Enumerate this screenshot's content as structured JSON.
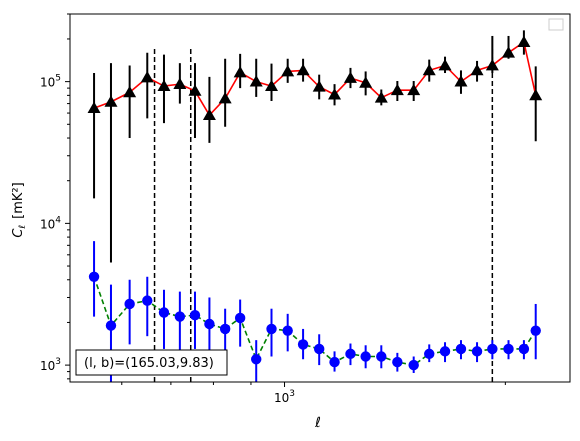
{
  "chart_data": {
    "type": "scatter",
    "xscale": "log",
    "yscale": "log",
    "xlabel": "ℓ",
    "ylabel_main": "C",
    "ylabel_sub": "ℓ",
    "ylabel_unit": "[mK²]",
    "xlim": [
      510,
      2450
    ],
    "ylim": [
      760,
      300000
    ],
    "x_ticks": [
      {
        "value": 1000,
        "base": "10",
        "exp": "3"
      }
    ],
    "y_ticks": [
      {
        "value": 1000,
        "base": "10",
        "exp": "3"
      },
      {
        "value": 10000,
        "base": "10",
        "exp": "4"
      },
      {
        "value": 100000,
        "base": "10",
        "exp": "5"
      }
    ],
    "vlines": [
      665,
      745,
      1920
    ],
    "annotation": "(l, b)=(165.03,9.83)",
    "series": [
      {
        "marker": "triangle",
        "marker_color": "#000000",
        "line_color": "#ff0000",
        "line_style": "solid",
        "error_color": "#000000",
        "x": [
          550,
          580,
          615,
          650,
          685,
          720,
          755,
          790,
          830,
          870,
          915,
          960,
          1010,
          1060,
          1115,
          1170,
          1230,
          1290,
          1355,
          1425,
          1500,
          1575,
          1655,
          1740,
          1830,
          1920,
          2020,
          2120,
          2200
        ],
        "y": [
          65000,
          72000,
          84000,
          107000,
          93000,
          96000,
          86000,
          58000,
          76000,
          116000,
          100000,
          93000,
          118000,
          120000,
          92000,
          81000,
          106000,
          98000,
          77000,
          87000,
          87000,
          120000,
          130000,
          100000,
          120000,
          130000,
          160000,
          190000,
          80000
        ],
        "yerr_low": [
          15000,
          5300,
          40000,
          55000,
          51000,
          70000,
          40000,
          37000,
          48000,
          90000,
          78000,
          73000,
          98000,
          100000,
          75000,
          68000,
          90000,
          80000,
          68000,
          73000,
          73000,
          100000,
          115000,
          82000,
          100000,
          115000,
          145000,
          155000,
          38000
        ],
        "yerr_high": [
          115000,
          135000,
          130000,
          160000,
          155000,
          135000,
          135000,
          108000,
          145000,
          157000,
          145000,
          134000,
          145000,
          145000,
          112000,
          96000,
          125000,
          118000,
          88000,
          101000,
          101000,
          143000,
          150000,
          120000,
          140000,
          210000,
          210000,
          230000,
          128000
        ]
      },
      {
        "marker": "circle",
        "marker_color": "#0000ff",
        "line_color": "#008000",
        "line_style": "dashed",
        "error_color": "#0000ff",
        "x": [
          550,
          580,
          615,
          650,
          685,
          720,
          755,
          790,
          830,
          870,
          915,
          960,
          1010,
          1060,
          1115,
          1170,
          1230,
          1290,
          1355,
          1425,
          1500,
          1575,
          1655,
          1740,
          1830,
          1920,
          2020,
          2120,
          2200
        ],
        "y": [
          4200,
          1900,
          2700,
          2850,
          2350,
          2200,
          2250,
          1950,
          1800,
          2150,
          1100,
          1800,
          1750,
          1400,
          1300,
          1050,
          1200,
          1150,
          1150,
          1050,
          1000,
          1200,
          1250,
          1300,
          1250,
          1300,
          1300,
          1300,
          1750
        ],
        "yerr_low": [
          2200,
          760,
          1400,
          1600,
          1300,
          1200,
          1300,
          1100,
          1050,
          1350,
          760,
          1150,
          1250,
          1100,
          1000,
          900,
          1000,
          950,
          950,
          900,
          880,
          1050,
          1050,
          1100,
          1050,
          1100,
          1100,
          1100,
          1100
        ],
        "yerr_high": [
          7500,
          3700,
          4000,
          4200,
          3400,
          3300,
          3300,
          3000,
          2500,
          2900,
          1500,
          2500,
          2300,
          1800,
          1650,
          1250,
          1420,
          1380,
          1380,
          1220,
          1150,
          1400,
          1450,
          1500,
          1450,
          1500,
          1500,
          1500,
          2700
        ]
      }
    ]
  }
}
